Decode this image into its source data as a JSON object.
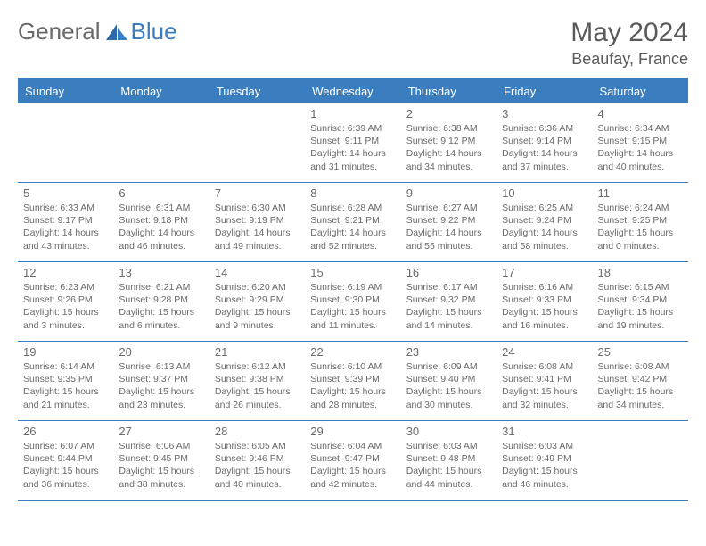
{
  "brand": {
    "part1": "General",
    "part2": "Blue"
  },
  "title": "May 2024",
  "location": "Beaufay, France",
  "colors": {
    "accent": "#3a7ebf",
    "text": "#5a5a5a",
    "muted": "#6a6a6a",
    "background": "#ffffff"
  },
  "day_names": [
    "Sunday",
    "Monday",
    "Tuesday",
    "Wednesday",
    "Thursday",
    "Friday",
    "Saturday"
  ],
  "weeks": [
    [
      null,
      null,
      null,
      {
        "n": "1",
        "sr": "6:39 AM",
        "ss": "9:11 PM",
        "dl": "14 hours and 31 minutes."
      },
      {
        "n": "2",
        "sr": "6:38 AM",
        "ss": "9:12 PM",
        "dl": "14 hours and 34 minutes."
      },
      {
        "n": "3",
        "sr": "6:36 AM",
        "ss": "9:14 PM",
        "dl": "14 hours and 37 minutes."
      },
      {
        "n": "4",
        "sr": "6:34 AM",
        "ss": "9:15 PM",
        "dl": "14 hours and 40 minutes."
      }
    ],
    [
      {
        "n": "5",
        "sr": "6:33 AM",
        "ss": "9:17 PM",
        "dl": "14 hours and 43 minutes."
      },
      {
        "n": "6",
        "sr": "6:31 AM",
        "ss": "9:18 PM",
        "dl": "14 hours and 46 minutes."
      },
      {
        "n": "7",
        "sr": "6:30 AM",
        "ss": "9:19 PM",
        "dl": "14 hours and 49 minutes."
      },
      {
        "n": "8",
        "sr": "6:28 AM",
        "ss": "9:21 PM",
        "dl": "14 hours and 52 minutes."
      },
      {
        "n": "9",
        "sr": "6:27 AM",
        "ss": "9:22 PM",
        "dl": "14 hours and 55 minutes."
      },
      {
        "n": "10",
        "sr": "6:25 AM",
        "ss": "9:24 PM",
        "dl": "14 hours and 58 minutes."
      },
      {
        "n": "11",
        "sr": "6:24 AM",
        "ss": "9:25 PM",
        "dl": "15 hours and 0 minutes."
      }
    ],
    [
      {
        "n": "12",
        "sr": "6:23 AM",
        "ss": "9:26 PM",
        "dl": "15 hours and 3 minutes."
      },
      {
        "n": "13",
        "sr": "6:21 AM",
        "ss": "9:28 PM",
        "dl": "15 hours and 6 minutes."
      },
      {
        "n": "14",
        "sr": "6:20 AM",
        "ss": "9:29 PM",
        "dl": "15 hours and 9 minutes."
      },
      {
        "n": "15",
        "sr": "6:19 AM",
        "ss": "9:30 PM",
        "dl": "15 hours and 11 minutes."
      },
      {
        "n": "16",
        "sr": "6:17 AM",
        "ss": "9:32 PM",
        "dl": "15 hours and 14 minutes."
      },
      {
        "n": "17",
        "sr": "6:16 AM",
        "ss": "9:33 PM",
        "dl": "15 hours and 16 minutes."
      },
      {
        "n": "18",
        "sr": "6:15 AM",
        "ss": "9:34 PM",
        "dl": "15 hours and 19 minutes."
      }
    ],
    [
      {
        "n": "19",
        "sr": "6:14 AM",
        "ss": "9:35 PM",
        "dl": "15 hours and 21 minutes."
      },
      {
        "n": "20",
        "sr": "6:13 AM",
        "ss": "9:37 PM",
        "dl": "15 hours and 23 minutes."
      },
      {
        "n": "21",
        "sr": "6:12 AM",
        "ss": "9:38 PM",
        "dl": "15 hours and 26 minutes."
      },
      {
        "n": "22",
        "sr": "6:10 AM",
        "ss": "9:39 PM",
        "dl": "15 hours and 28 minutes."
      },
      {
        "n": "23",
        "sr": "6:09 AM",
        "ss": "9:40 PM",
        "dl": "15 hours and 30 minutes."
      },
      {
        "n": "24",
        "sr": "6:08 AM",
        "ss": "9:41 PM",
        "dl": "15 hours and 32 minutes."
      },
      {
        "n": "25",
        "sr": "6:08 AM",
        "ss": "9:42 PM",
        "dl": "15 hours and 34 minutes."
      }
    ],
    [
      {
        "n": "26",
        "sr": "6:07 AM",
        "ss": "9:44 PM",
        "dl": "15 hours and 36 minutes."
      },
      {
        "n": "27",
        "sr": "6:06 AM",
        "ss": "9:45 PM",
        "dl": "15 hours and 38 minutes."
      },
      {
        "n": "28",
        "sr": "6:05 AM",
        "ss": "9:46 PM",
        "dl": "15 hours and 40 minutes."
      },
      {
        "n": "29",
        "sr": "6:04 AM",
        "ss": "9:47 PM",
        "dl": "15 hours and 42 minutes."
      },
      {
        "n": "30",
        "sr": "6:03 AM",
        "ss": "9:48 PM",
        "dl": "15 hours and 44 minutes."
      },
      {
        "n": "31",
        "sr": "6:03 AM",
        "ss": "9:49 PM",
        "dl": "15 hours and 46 minutes."
      },
      null
    ]
  ],
  "labels": {
    "sunrise": "Sunrise:",
    "sunset": "Sunset:",
    "daylight": "Daylight:"
  }
}
